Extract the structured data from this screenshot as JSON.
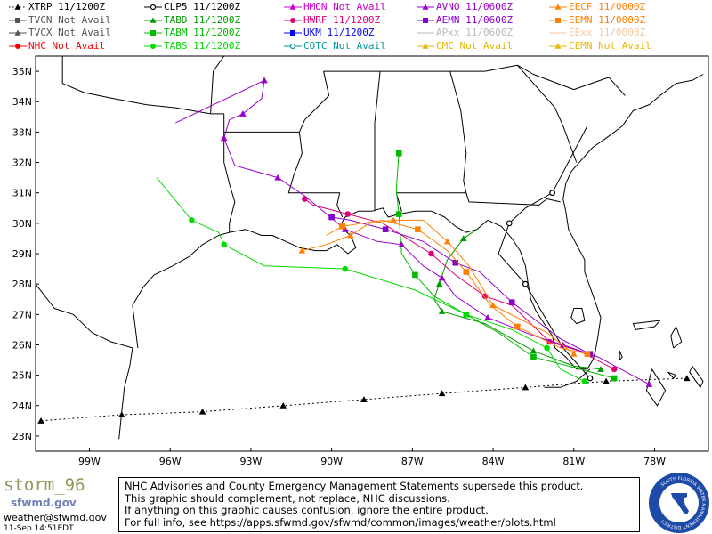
{
  "legend": [
    {
      "label": "XTRP 11/1200Z",
      "color": "#000000",
      "marker": "triangle",
      "line": "dotted"
    },
    {
      "label": "CLP5 11/1200Z",
      "color": "#000000",
      "marker": "circle-open",
      "line": "solid"
    },
    {
      "label": "HMON Not Avail",
      "color": "#cc00cc",
      "marker": "triangle",
      "line": "solid"
    },
    {
      "label": "AVNO 11/0600Z",
      "color": "#9900cc",
      "marker": "triangle",
      "line": "solid"
    },
    {
      "label": "EECF 11/0000Z",
      "color": "#ff7f00",
      "marker": "triangle",
      "line": "solid"
    },
    {
      "label": "TVCN Not Avail",
      "color": "#555555",
      "marker": "square",
      "line": "solid"
    },
    {
      "label": "TABD 11/1200Z",
      "color": "#009900",
      "marker": "triangle",
      "line": "solid"
    },
    {
      "label": "HWRF 11/1200Z",
      "color": "#dd0077",
      "marker": "circle",
      "line": "solid"
    },
    {
      "label": "AEMN 11/0600Z",
      "color": "#8800cc",
      "marker": "square",
      "line": "solid"
    },
    {
      "label": "EEMN 11/0000Z",
      "color": "#ff7f00",
      "marker": "square",
      "line": "solid"
    },
    {
      "label": "TVCX Not Avail",
      "color": "#555555",
      "marker": "triangle",
      "line": "solid"
    },
    {
      "label": "TABM 11/1200Z",
      "color": "#00bb00",
      "marker": "square",
      "line": "solid"
    },
    {
      "label": "UKM 11/1200Z",
      "color": "#0000ff",
      "marker": "square",
      "line": "solid"
    },
    {
      "label": "APxx 11/0600Z",
      "color": "#bbbbbb",
      "marker": "none",
      "line": "solid"
    },
    {
      "label": "EExx 11/0000Z",
      "color": "#f4c9a0",
      "marker": "none",
      "line": "solid"
    },
    {
      "label": "NHC Not Avail",
      "color": "#ff0000",
      "marker": "circle",
      "line": "solid"
    },
    {
      "label": "TABS 11/1200Z",
      "color": "#00dd00",
      "marker": "circle",
      "line": "solid"
    },
    {
      "label": "COTC Not Avail",
      "color": "#009999",
      "marker": "circle-open",
      "line": "solid"
    },
    {
      "label": "CMC Not Avail",
      "color": "#e6b800",
      "marker": "triangle",
      "line": "solid"
    },
    {
      "label": "CEMN Not Avail",
      "color": "#e6b800",
      "marker": "triangle",
      "line": "solid"
    }
  ],
  "axis": {
    "lat_labels": [
      "35N",
      "34N",
      "33N",
      "32N",
      "31N",
      "30N",
      "29N",
      "28N",
      "27N",
      "26N",
      "25N",
      "24N",
      "23N"
    ],
    "lon_labels": [
      "99W",
      "96W",
      "93W",
      "90W",
      "87W",
      "84W",
      "81W",
      "78W"
    ],
    "lon_range": [
      -101,
      -76
    ],
    "lat_range": [
      22.5,
      35.5
    ]
  },
  "tracks": [
    {
      "id": "XTRP",
      "color": "#000000",
      "marker": "triangle",
      "dash": "2,3",
      "points": [
        [
          -76.8,
          24.9
        ],
        [
          -79.8,
          24.8
        ],
        [
          -82.8,
          24.6
        ],
        [
          -85.9,
          24.4
        ],
        [
          -88.8,
          24.2
        ],
        [
          -91.8,
          24.0
        ],
        [
          -94.8,
          23.8
        ],
        [
          -97.8,
          23.7
        ],
        [
          -100.8,
          23.5
        ]
      ]
    },
    {
      "id": "CLP5",
      "color": "#000000",
      "marker": "circle-open",
      "dash": "",
      "points": [
        [
          -80.4,
          24.9
        ],
        [
          -81.4,
          25.9
        ],
        [
          -82.8,
          28.0
        ],
        [
          -83.8,
          29.0
        ],
        [
          -83.4,
          30.0
        ],
        [
          -82.8,
          30.5
        ],
        [
          -81.8,
          31.0
        ],
        [
          -80.5,
          33.2
        ]
      ]
    },
    {
      "id": "TABD",
      "color": "#009900",
      "marker": "triangle",
      "dash": "",
      "points": [
        [
          -80.0,
          25.2
        ],
        [
          -81.0,
          25.3
        ],
        [
          -82.5,
          25.8
        ],
        [
          -84.3,
          26.7
        ],
        [
          -85.9,
          27.1
        ],
        [
          -86.2,
          27.5
        ],
        [
          -86.0,
          28.0
        ],
        [
          -85.7,
          28.8
        ],
        [
          -85.1,
          29.5
        ],
        [
          -84.6,
          29.8
        ]
      ]
    },
    {
      "id": "TABM",
      "color": "#00bb00",
      "marker": "square",
      "dash": "",
      "points": [
        [
          -79.5,
          24.9
        ],
        [
          -81.2,
          25.3
        ],
        [
          -82.5,
          25.6
        ],
        [
          -83.8,
          26.4
        ],
        [
          -85.0,
          27.0
        ],
        [
          -86.2,
          27.6
        ],
        [
          -86.9,
          28.3
        ],
        [
          -87.4,
          29.0
        ],
        [
          -87.5,
          30.3
        ],
        [
          -87.6,
          31.1
        ],
        [
          -87.5,
          32.3
        ]
      ]
    },
    {
      "id": "TABS",
      "color": "#00dd00",
      "marker": "circle",
      "dash": "",
      "points": [
        [
          -80.6,
          24.8
        ],
        [
          -81.5,
          25.2
        ],
        [
          -82.0,
          25.9
        ],
        [
          -83.3,
          26.5
        ],
        [
          -85.0,
          27.0
        ],
        [
          -86.9,
          27.8
        ],
        [
          -89.5,
          28.5
        ],
        [
          -92.5,
          28.6
        ],
        [
          -94.0,
          29.3
        ],
        [
          -94.2,
          29.7
        ],
        [
          -95.2,
          30.1
        ],
        [
          -96.5,
          31.5
        ]
      ]
    },
    {
      "id": "HWRF",
      "color": "#dd0077",
      "marker": "circle",
      "dash": "",
      "points": [
        [
          -79.5,
          25.2
        ],
        [
          -80.8,
          25.8
        ],
        [
          -81.9,
          26.1
        ],
        [
          -83.3,
          27.3
        ],
        [
          -84.3,
          27.6
        ],
        [
          -85.4,
          28.3
        ],
        [
          -86.3,
          29.0
        ],
        [
          -88.1,
          30.0
        ],
        [
          -89.4,
          30.3
        ],
        [
          -90.7,
          30.6
        ],
        [
          -91.0,
          30.8
        ]
      ]
    },
    {
      "id": "AVNO",
      "color": "#9900cc",
      "marker": "triangle",
      "dash": "",
      "points": [
        [
          -78.2,
          24.7
        ],
        [
          -80.1,
          25.6
        ],
        [
          -81.4,
          26.0
        ],
        [
          -82.5,
          26.3
        ],
        [
          -84.2,
          26.9
        ],
        [
          -85.4,
          27.6
        ],
        [
          -85.9,
          28.2
        ],
        [
          -86.6,
          28.6
        ],
        [
          -87.4,
          29.3
        ],
        [
          -88.3,
          29.4
        ],
        [
          -89.5,
          29.8
        ],
        [
          -91.0,
          30.9
        ],
        [
          -92.0,
          31.5
        ],
        [
          -93.6,
          31.9
        ],
        [
          -94.0,
          32.8
        ],
        [
          -93.8,
          33.4
        ],
        [
          -93.3,
          33.6
        ],
        [
          -92.6,
          34.1
        ],
        [
          -92.5,
          34.7
        ],
        [
          -95.8,
          33.3
        ]
      ]
    },
    {
      "id": "AEMN",
      "color": "#8800cc",
      "marker": "square",
      "dash": "",
      "points": [
        [
          -80.4,
          25.7
        ],
        [
          -81.5,
          26.2
        ],
        [
          -83.3,
          27.4
        ],
        [
          -84.5,
          28.4
        ],
        [
          -85.4,
          28.7
        ],
        [
          -86.6,
          29.4
        ],
        [
          -88.0,
          29.8
        ],
        [
          -89.3,
          30.1
        ],
        [
          -90.0,
          30.2
        ]
      ]
    },
    {
      "id": "EECF",
      "color": "#ff7f00",
      "marker": "triangle",
      "dash": "",
      "points": [
        [
          -81.0,
          25.7
        ],
        [
          -82.0,
          26.4
        ],
        [
          -84.0,
          27.3
        ],
        [
          -84.9,
          28.6
        ],
        [
          -85.7,
          29.4
        ],
        [
          -86.6,
          30.1
        ],
        [
          -87.7,
          30.1
        ],
        [
          -88.6,
          30.0
        ],
        [
          -89.3,
          29.6
        ],
        [
          -90.2,
          29.3
        ],
        [
          -91.1,
          29.1
        ]
      ]
    },
    {
      "id": "EEMN",
      "color": "#ff7f00",
      "marker": "square",
      "dash": "",
      "points": [
        [
          -80.5,
          25.7
        ],
        [
          -81.5,
          25.9
        ],
        [
          -83.1,
          26.6
        ],
        [
          -84.1,
          27.3
        ],
        [
          -85.0,
          28.4
        ],
        [
          -85.7,
          29.1
        ],
        [
          -86.8,
          29.8
        ],
        [
          -88.1,
          30.1
        ],
        [
          -89.6,
          29.9
        ],
        [
          -90.2,
          29.6
        ]
      ]
    }
  ],
  "brand": {
    "name": "storm_96",
    "subtitle": "sfwmd.gov",
    "email": "weather@sfwmd.gov",
    "date": "11-Sep 14:51EDT"
  },
  "notice": [
    "NHC Advisories and County Emergency Management Statements supersede this product.",
    "This graphic should complement, not replace, NHC discussions.",
    "If anything on this graphic causes confusion, ignore the entire product.",
    "For full info, see  https://apps.sfwmd.gov/sfwmd/common/images/weather/plots.html"
  ],
  "seal": {
    "text": "SOUTH FLORIDA WATER MANAGEMENT DISTRICT",
    "colors": {
      "ring": "#1e4aa8",
      "inner": "#ffffff",
      "land": "#1e4aa8"
    }
  }
}
